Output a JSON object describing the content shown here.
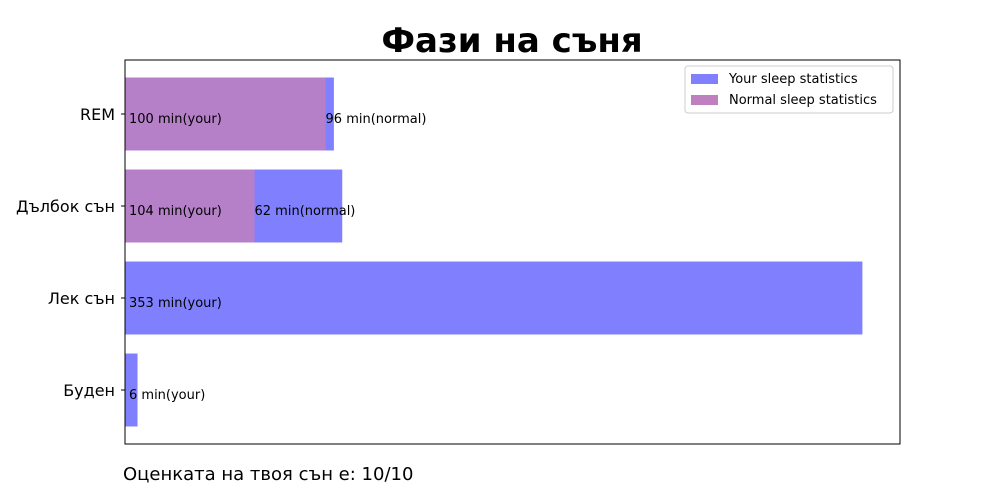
{
  "chart_data": {
    "type": "bar",
    "orientation": "horizontal",
    "title": "Фази на съня",
    "xlabel": "",
    "ylabel": "",
    "xlim": [
      0,
      371
    ],
    "categories": [
      "REM",
      "Дълбок сън",
      "Лек сън",
      "Буден"
    ],
    "grid": false,
    "legend_position": "top-right",
    "series": [
      {
        "name": "Your sleep statistics",
        "color": "#8080ff",
        "values": [
          100,
          104,
          353,
          6
        ],
        "labels": [
          "100 min(your)",
          "104 min(your)",
          "353 min(your)",
          "6 min(your)"
        ]
      },
      {
        "name": "Normal sleep statistics",
        "color": "#bf80bf",
        "values": [
          96,
          62,
          null,
          null
        ],
        "labels": [
          "96 min(normal)",
          "62 min(normal)",
          null,
          null
        ]
      }
    ]
  },
  "score_text": "Оценката на твоя сън е: 10/10"
}
